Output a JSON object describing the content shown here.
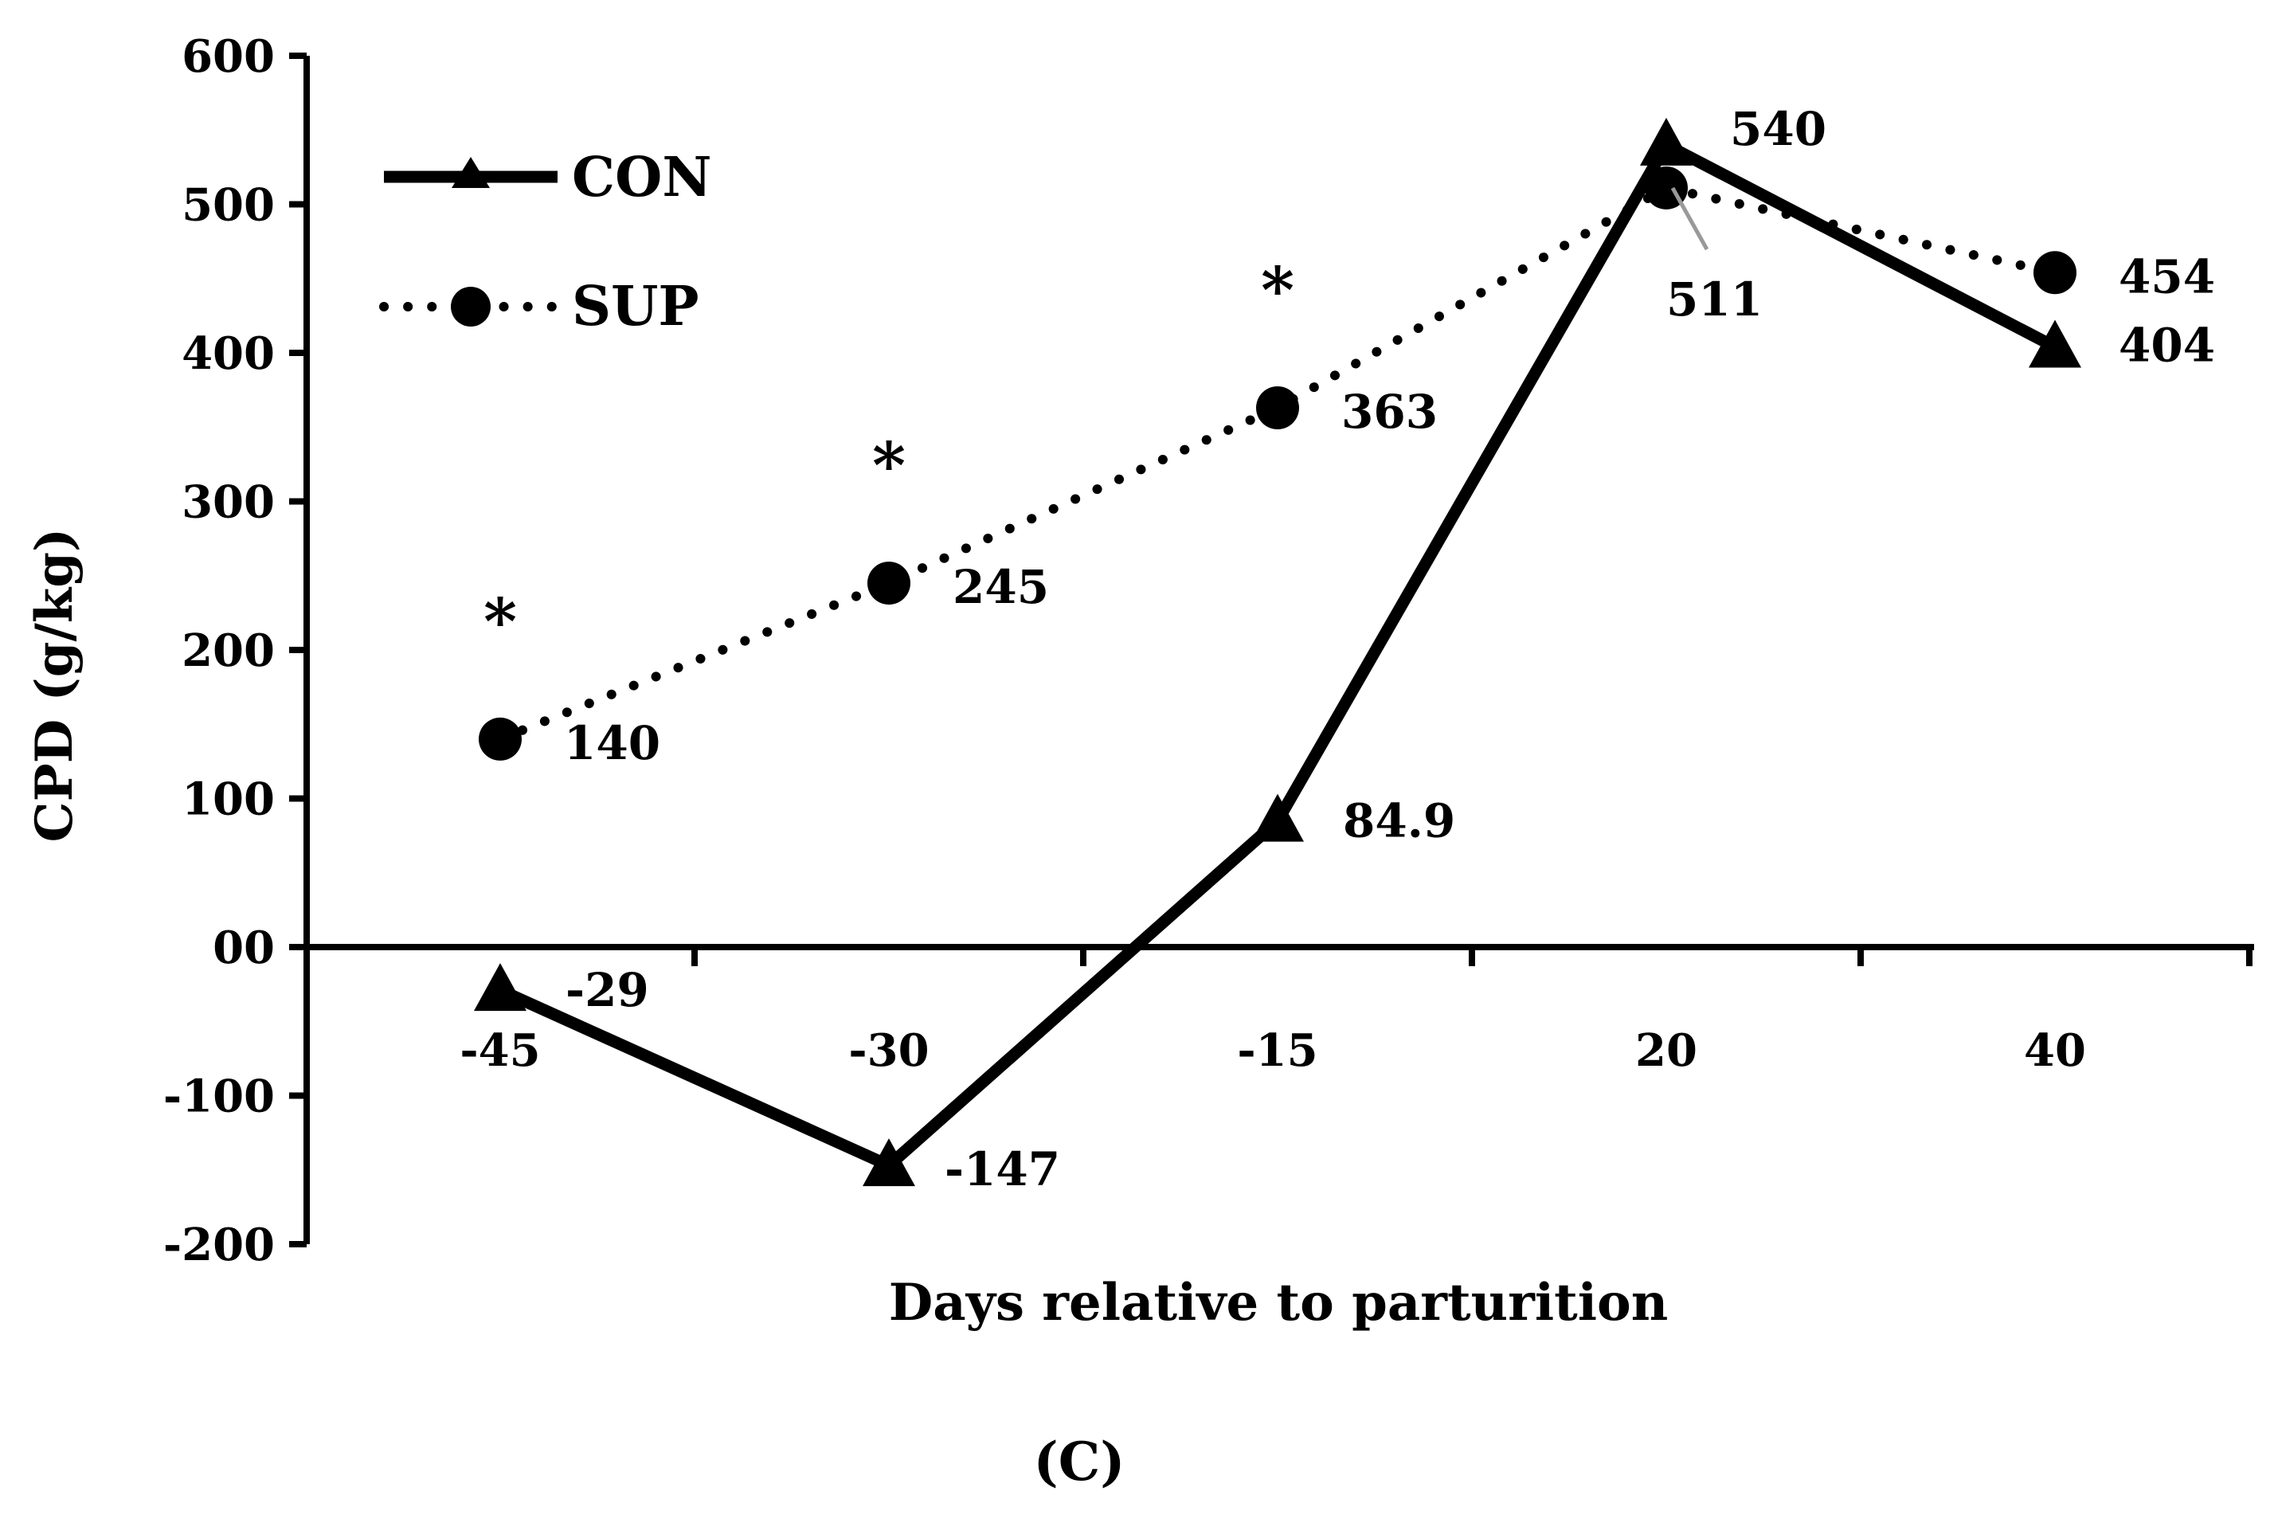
{
  "chart_data": {
    "type": "line",
    "title": "",
    "panel_label": "(C)",
    "xlabel": "Days relative to parturition",
    "ylabel": "CPD (g/kg)",
    "categories": [
      "-45",
      "-30",
      "-15",
      "20",
      "40"
    ],
    "ylim": [
      -200,
      600
    ],
    "yticks": [
      600,
      500,
      400,
      300,
      200,
      100,
      0,
      -100,
      -200
    ],
    "ytick_labels": [
      "600",
      "500",
      "400",
      "300",
      "200",
      "100",
      "00",
      "-100",
      "-200"
    ],
    "grid": false,
    "legend_position": "top-left",
    "series": [
      {
        "name": "CON",
        "style": "solid",
        "marker": "triangle",
        "values": [
          -29,
          -147,
          84.9,
          540,
          404
        ],
        "labels": [
          "-29",
          "-147",
          "84.9",
          "540",
          "404"
        ]
      },
      {
        "name": "SUP",
        "style": "dotted",
        "marker": "circle",
        "values": [
          140,
          245,
          363,
          511,
          454
        ],
        "labels": [
          "140",
          "245",
          "363",
          "511",
          "454"
        ]
      }
    ],
    "significance": {
      "symbol": "*",
      "categories": [
        "-45",
        "-30",
        "-15"
      ]
    }
  }
}
